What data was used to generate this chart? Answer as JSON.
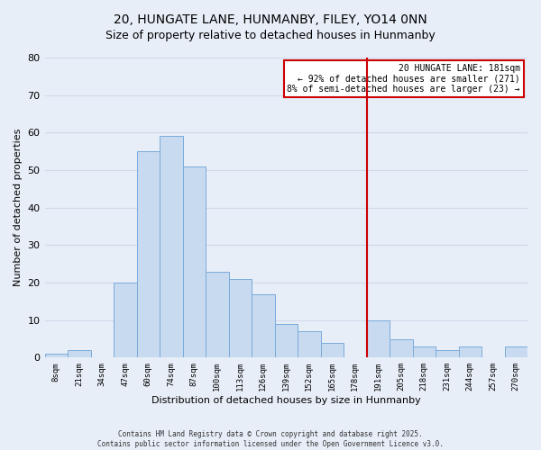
{
  "title": "20, HUNGATE LANE, HUNMANBY, FILEY, YO14 0NN",
  "subtitle": "Size of property relative to detached houses in Hunmanby",
  "xlabel": "Distribution of detached houses by size in Hunmanby",
  "ylabel": "Number of detached properties",
  "bar_labels": [
    "8sqm",
    "21sqm",
    "34sqm",
    "47sqm",
    "60sqm",
    "74sqm",
    "87sqm",
    "100sqm",
    "113sqm",
    "126sqm",
    "139sqm",
    "152sqm",
    "165sqm",
    "178sqm",
    "191sqm",
    "205sqm",
    "218sqm",
    "231sqm",
    "244sqm",
    "257sqm",
    "270sqm"
  ],
  "bar_values": [
    1,
    2,
    0,
    20,
    55,
    59,
    51,
    23,
    21,
    17,
    9,
    7,
    4,
    0,
    10,
    5,
    3,
    2,
    3,
    0,
    3
  ],
  "bar_color": "#c8daf0",
  "bar_edge_color": "#7aabdb",
  "vline_x_index": 13.5,
  "vline_color": "#cc0000",
  "ylim": [
    0,
    80
  ],
  "yticks": [
    0,
    10,
    20,
    30,
    40,
    50,
    60,
    70,
    80
  ],
  "annotation_title": "20 HUNGATE LANE: 181sqm",
  "annotation_line1": "← 92% of detached houses are smaller (271)",
  "annotation_line2": "8% of semi-detached houses are larger (23) →",
  "annotation_box_color": "#ffffff",
  "annotation_box_edge": "#cc0000",
  "bg_color": "#e8eef8",
  "grid_color": "#d0d8e8",
  "footer1": "Contains HM Land Registry data © Crown copyright and database right 2025.",
  "footer2": "Contains public sector information licensed under the Open Government Licence v3.0.",
  "title_fontsize": 10,
  "subtitle_fontsize": 9,
  "xlabel_fontsize": 8,
  "ylabel_fontsize": 8
}
